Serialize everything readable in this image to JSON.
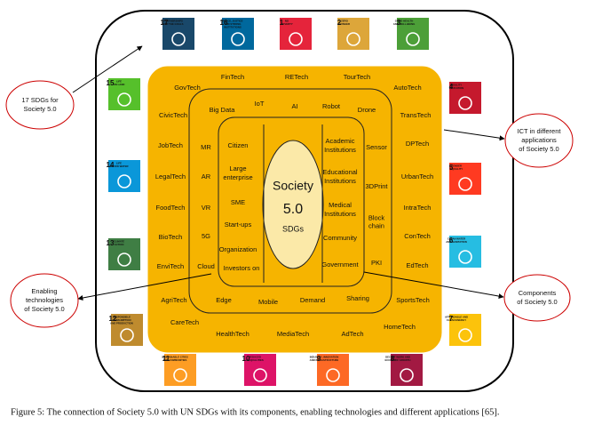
{
  "sdgs": [
    {
      "number": "17",
      "title": [
        "PARTNERSHIPS",
        "FOR THE GOALS"
      ]
    },
    {
      "number": "16",
      "title": [
        "PEACE, JUSTICE",
        "AND STRONG",
        "INSTITUTIONS"
      ]
    },
    {
      "number": "1",
      "title": [
        "NO",
        "POVERTY"
      ]
    },
    {
      "number": "2",
      "title": [
        "ZERO",
        "HUNGER"
      ]
    },
    {
      "number": "3",
      "title": [
        "GOOD HEALTH",
        "AND WELL-BEING"
      ]
    },
    {
      "number": "15",
      "title": [
        "LIFE",
        "ON LAND"
      ]
    },
    {
      "number": "4",
      "title": [
        "QUALITY",
        "EDUCATION"
      ]
    },
    {
      "number": "14",
      "title": [
        "LIFE",
        "BELOW WATER"
      ]
    },
    {
      "number": "5",
      "title": [
        "GENDER",
        "EQUALITY"
      ]
    },
    {
      "number": "13",
      "title": [
        "CLIMATE",
        "ACTION"
      ]
    },
    {
      "number": "6",
      "title": [
        "CLEAN WATER",
        "AND SANITATION"
      ]
    },
    {
      "number": "12",
      "title": [
        "RESPONSIBLE",
        "CONSUMPTION",
        "AND PRODUCTION"
      ]
    },
    {
      "number": "7",
      "title": [
        "AFFORDABLE AND",
        "CLEAN ENERGY"
      ]
    },
    {
      "number": "11",
      "title": [
        "SUSTAINABLE CITIES",
        "AND COMMUNITIES"
      ]
    },
    {
      "number": "10",
      "title": [
        "REDUCED",
        "INEQUALITIES"
      ]
    },
    {
      "number": "9",
      "title": [
        "INDUSTRY, INNOVATION",
        "AND INFRASTRUCTURE"
      ]
    },
    {
      "number": "8",
      "title": [
        "DECENT WORK AND",
        "ECONOMIC GROWTH"
      ]
    }
  ],
  "applications": [
    "GovTech",
    "FinTech",
    "RETech",
    "TourTech",
    "AutoTech",
    "CivicTech",
    "TransTech",
    "JobTech",
    "DPTech",
    "LegalTech",
    "UrbanTech",
    "FoodTech",
    "IntraTech",
    "BioTech",
    "ConTech",
    "EnviTech",
    "EdTech",
    "AgriTech",
    "SportsTech",
    "CareTech",
    "HealthTech",
    "MediaTech",
    "AdTech",
    "HomeTech"
  ],
  "enabling_technologies": [
    [
      "Big Data"
    ],
    [
      "IoT"
    ],
    [
      "AI"
    ],
    [
      "Robot"
    ],
    [
      "Drone"
    ],
    [
      "MR"
    ],
    [
      "AR"
    ],
    [
      "VR"
    ],
    [
      "5G"
    ],
    [
      "Cloud"
    ],
    [
      "Sensor"
    ],
    [
      "3DPrint"
    ],
    [
      "Block",
      "chain"
    ],
    [
      "PKI"
    ],
    [
      "Edge"
    ],
    [
      "Mobile"
    ],
    [
      "Demand"
    ],
    [
      "Sharing"
    ]
  ],
  "components": [
    [
      "Citizen"
    ],
    [
      "Large",
      "enterprise"
    ],
    [
      "SME"
    ],
    [
      "Start-ups"
    ],
    [
      "Organization"
    ],
    [
      "Investors on"
    ],
    [
      "Academic",
      "Institutions"
    ],
    [
      "Educational",
      "Institutions"
    ],
    [
      "Medical",
      "Institutions"
    ],
    [
      "Community"
    ],
    [
      "Government"
    ]
  ],
  "center": [
    "Society",
    "5.0",
    "SDGs"
  ],
  "callouts": [
    [
      "17 SDGs for",
      "Society 5.0"
    ],
    [
      "ICT in different",
      "applications",
      "of Society 5.0"
    ],
    [
      "Enabling",
      "technologies",
      "of Society 5.0"
    ],
    [
      "Components",
      "of Society 5.0"
    ]
  ],
  "caption": "Figure 5: The connection of Society 5.0 with UN SDGs with its components, enabling technologies and different applications [65]."
}
